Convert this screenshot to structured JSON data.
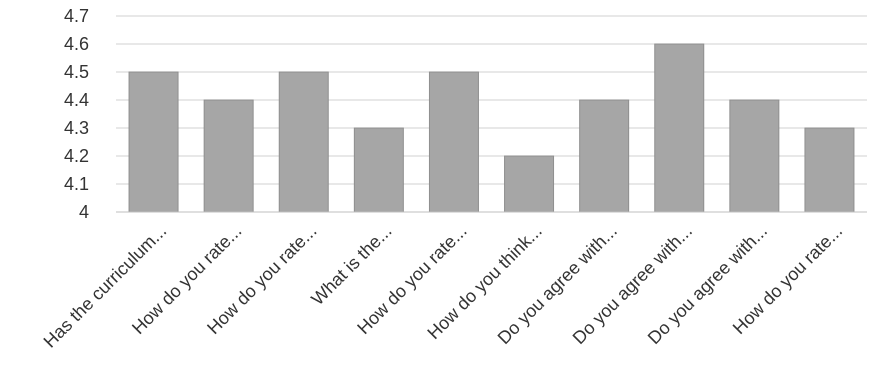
{
  "chart_data": {
    "type": "bar",
    "categories": [
      "Has the curriculum...",
      "How do you rate...",
      "How do you rate...",
      "What is the...",
      "How do you rate...",
      "How do you think...",
      "Do you agree with...",
      "Do you agree with...",
      "Do you agree with...",
      "How do you rate..."
    ],
    "values": [
      4.5,
      4.4,
      4.5,
      4.3,
      4.5,
      4.2,
      4.4,
      4.6,
      4.4,
      4.3
    ],
    "title": "",
    "xlabel": "",
    "ylabel": "",
    "ylim": [
      4,
      4.7
    ],
    "yticks": [
      "4",
      "4.1",
      "4.2",
      "4.3",
      "4.4",
      "4.5",
      "4.6",
      "4.7"
    ],
    "grid": true,
    "legend": "none",
    "colors": {
      "bar": "#a6a6a6",
      "bar_edge": "#8f8f8f",
      "grid": "#d0d0d0",
      "axis": "#bfbfbf",
      "text": "#333333"
    }
  }
}
